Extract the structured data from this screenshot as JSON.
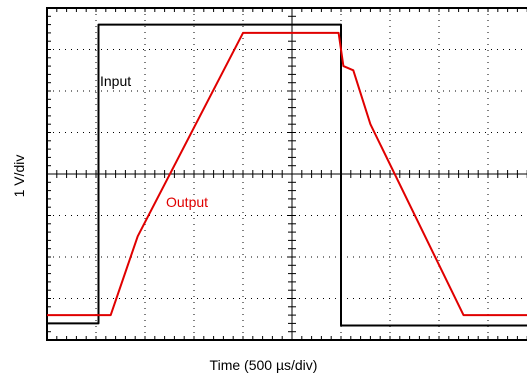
{
  "chart_data": {
    "type": "line",
    "title": "",
    "xlabel": "Time (500 µs/div)",
    "ylabel": "1 V/div",
    "grid": "dotted oscilloscope graticule",
    "x_unit": "divisions",
    "y_unit": "divisions",
    "xlim": [
      0,
      10
    ],
    "ylim": [
      -4,
      4
    ],
    "series": [
      {
        "name": "Input",
        "color": "#000000",
        "points": [
          [
            0,
            -3.6
          ],
          [
            1.05,
            -3.6
          ],
          [
            1.05,
            3.6
          ],
          [
            6.0,
            3.6
          ],
          [
            6.0,
            -3.65
          ],
          [
            10,
            -3.65
          ]
        ]
      },
      {
        "name": "Output",
        "color": "#e00000",
        "points": [
          [
            0,
            -3.4
          ],
          [
            1.3,
            -3.4
          ],
          [
            1.85,
            -1.5
          ],
          [
            4.0,
            3.4
          ],
          [
            5.95,
            3.4
          ],
          [
            6.05,
            2.6
          ],
          [
            6.25,
            2.5
          ],
          [
            6.6,
            1.2
          ],
          [
            8.5,
            -3.4
          ],
          [
            10,
            -3.4
          ]
        ]
      }
    ]
  }
}
